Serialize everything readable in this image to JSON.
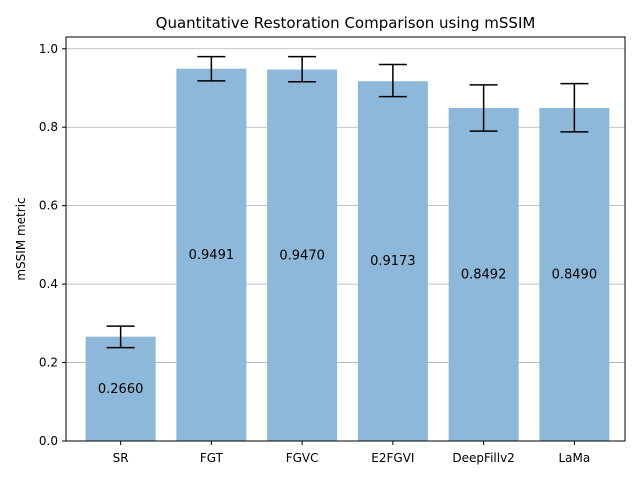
{
  "chart_data": {
    "type": "bar",
    "title": "Quantitative Restoration Comparison using mSSIM",
    "xlabel": "",
    "ylabel": "mSSIM metric",
    "categories": [
      "SR",
      "FGT",
      "FGVC",
      "E2FGVI",
      "DeepFillv2",
      "LaMa"
    ],
    "values": [
      0.266,
      0.9491,
      0.947,
      0.9173,
      0.8492,
      0.849
    ],
    "value_labels": [
      "0.2660",
      "0.9491",
      "0.9470",
      "0.9173",
      "0.8492",
      "0.8490"
    ],
    "error_low": [
      0.238,
      0.918,
      0.916,
      0.878,
      0.79,
      0.788
    ],
    "error_high": [
      0.293,
      0.98,
      0.98,
      0.96,
      0.908,
      0.911
    ],
    "ylim": [
      0,
      1.03
    ],
    "yticks": [
      "0.0",
      "0.2",
      "0.4",
      "0.6",
      "0.8",
      "1.0"
    ],
    "grid": "y",
    "bar_color": "#8db8d9",
    "error_color": "#000000",
    "grid_color": "#b0b0b0"
  }
}
